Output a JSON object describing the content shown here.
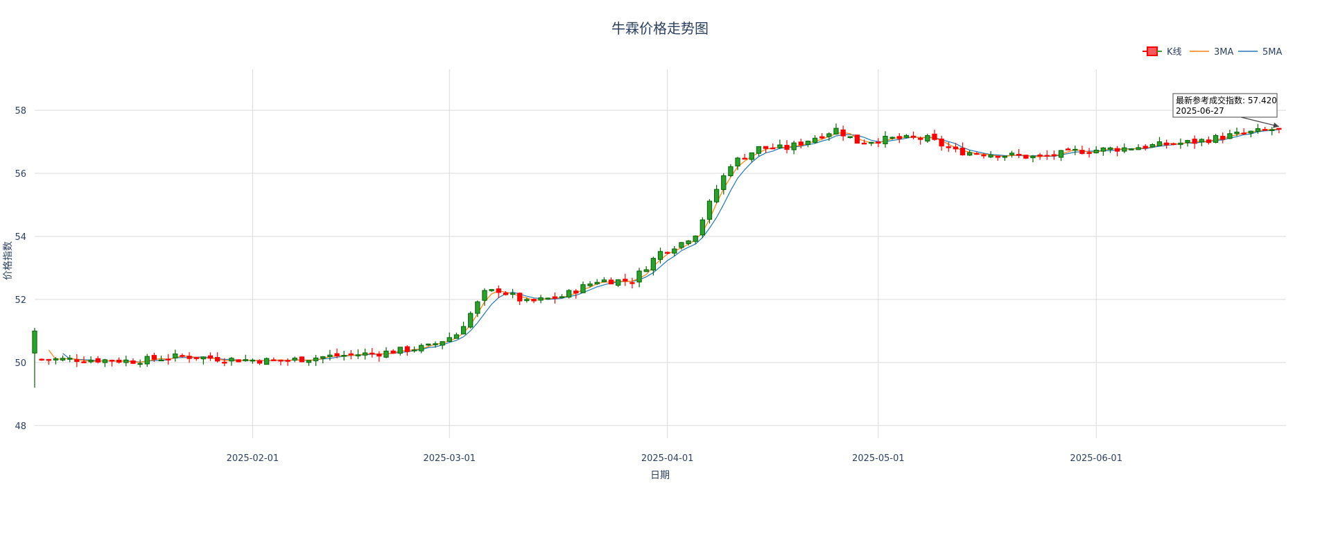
{
  "chart_data": {
    "type": "candlestick",
    "title": "牛霖价格走势图",
    "xlabel": "日期",
    "ylabel": "价格指数",
    "x_range": [
      "2025-01-01",
      "2025-06-28"
    ],
    "ylim": [
      47.6,
      59.3
    ],
    "x_ticks": [
      {
        "date": "2025-02-01",
        "label": "2025-02-01"
      },
      {
        "date": "2025-03-01",
        "label": "2025-03-01"
      },
      {
        "date": "2025-04-01",
        "label": "2025-04-01"
      },
      {
        "date": "2025-05-01",
        "label": "2025-05-01"
      },
      {
        "date": "2025-06-01",
        "label": "2025-06-01"
      }
    ],
    "y_ticks": [
      48,
      50,
      52,
      54,
      56,
      58
    ],
    "grid": true,
    "legend_position": "top-right",
    "legend": [
      {
        "key": "kline",
        "label": "K线"
      },
      {
        "key": "ma3",
        "label": "3MA"
      },
      {
        "key": "ma5",
        "label": "5MA"
      }
    ],
    "colors": {
      "up": "#2ca02c",
      "up_line": "#006400",
      "down": "#ff0000",
      "ma3": "#ff7f0e",
      "ma5": "#1f77b4",
      "grid": "#d9d9d9",
      "text": "#2a3f5f"
    },
    "annotation": {
      "line1": "最新参考成交指数: 57.420",
      "line2": "2025-06-27",
      "date": "2025-06-27",
      "value": 57.42
    },
    "anchors": [
      [
        "2025-01-02",
        50.1
      ],
      [
        "2025-01-08",
        50.1
      ],
      [
        "2025-01-15",
        50.05
      ],
      [
        "2025-01-22",
        50.2
      ],
      [
        "2025-01-29",
        50.1
      ],
      [
        "2025-02-05",
        50.05
      ],
      [
        "2025-02-12",
        50.2
      ],
      [
        "2025-02-19",
        50.3
      ],
      [
        "2025-02-26",
        50.5
      ],
      [
        "2025-03-02",
        50.9
      ],
      [
        "2025-03-06",
        52.2
      ],
      [
        "2025-03-08",
        52.3
      ],
      [
        "2025-03-12",
        51.9
      ],
      [
        "2025-03-17",
        52.1
      ],
      [
        "2025-03-22",
        52.6
      ],
      [
        "2025-03-27",
        52.6
      ],
      [
        "2025-03-31",
        53.5
      ],
      [
        "2025-04-03",
        53.8
      ],
      [
        "2025-04-05",
        54.1
      ],
      [
        "2025-04-08",
        55.5
      ],
      [
        "2025-04-10",
        56.3
      ],
      [
        "2025-04-14",
        56.8
      ],
      [
        "2025-04-18",
        56.8
      ],
      [
        "2025-04-25",
        57.4
      ],
      [
        "2025-04-28",
        57.0
      ],
      [
        "2025-05-03",
        57.1
      ],
      [
        "2025-05-08",
        57.1
      ],
      [
        "2025-05-12",
        56.7
      ],
      [
        "2025-05-18",
        56.6
      ],
      [
        "2025-05-24",
        56.5
      ],
      [
        "2025-05-29",
        56.7
      ],
      [
        "2025-06-05",
        56.8
      ],
      [
        "2025-06-10",
        56.9
      ],
      [
        "2025-06-15",
        57.0
      ],
      [
        "2025-06-20",
        57.2
      ],
      [
        "2025-06-27",
        57.42
      ]
    ],
    "first_candle": {
      "date": "2025-01-01",
      "open": 50.3,
      "close": 51.0,
      "high": 51.1,
      "low": 49.2
    }
  }
}
